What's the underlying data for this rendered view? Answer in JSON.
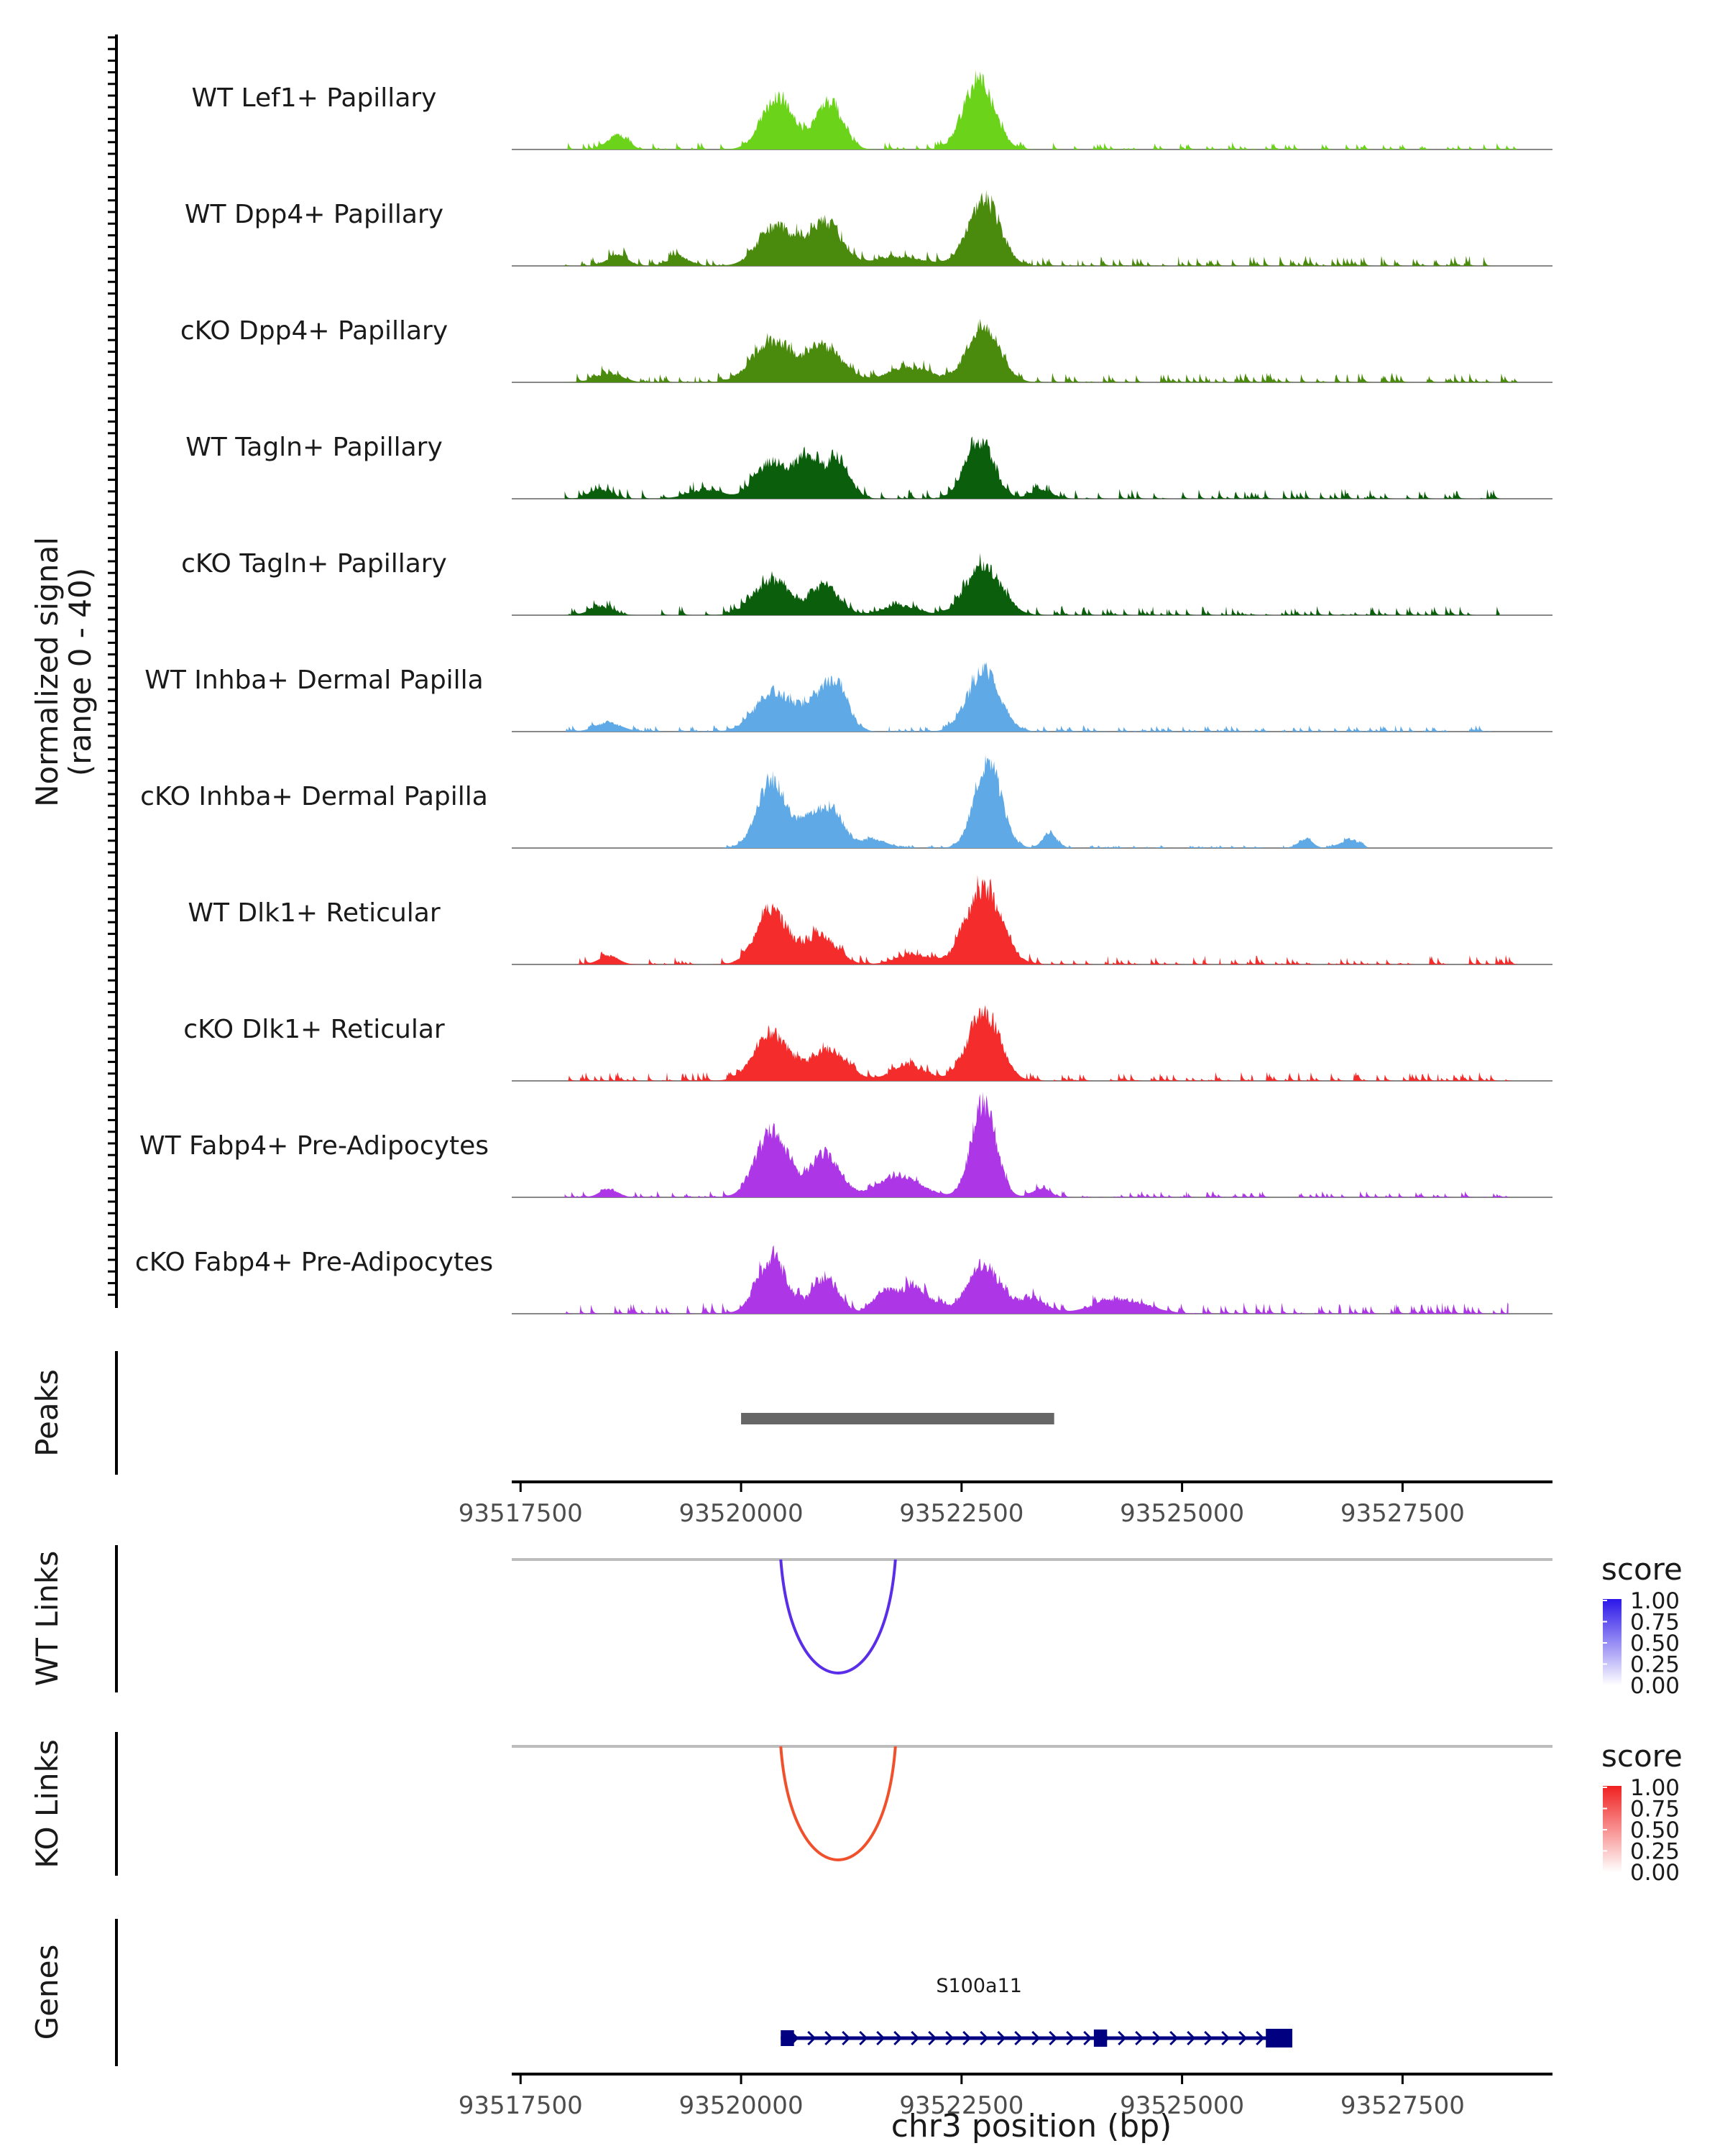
{
  "chart_data": {
    "type": "area",
    "region": {
      "chrom": "chr3",
      "start": 93517400,
      "end": 93529200
    },
    "xlabel": "chr3 position (bp)",
    "xticks": [
      93517500,
      93520000,
      93522500,
      93525000,
      93527500
    ],
    "xtick_labels": [
      "93517500",
      "93520000",
      "93522500",
      "93525000",
      "93527500"
    ],
    "signal_ylabel_line1": "Normalized signal",
    "signal_ylabel_line2": "(range 0 - 40)",
    "signal_range": [
      0,
      40
    ],
    "tracks": [
      {
        "name": "WT Lef1+ Papillary",
        "color": "#6bd31a",
        "seed": 1,
        "peaks": [
          [
            93518600,
            5,
            110
          ],
          [
            93520420,
            18,
            180
          ],
          [
            93521000,
            16,
            150
          ],
          [
            93522700,
            24,
            170
          ]
        ],
        "noise": 1.2,
        "extent": [
          93518000,
          93528800
        ]
      },
      {
        "name": "WT Dpp4+ Papillary",
        "color": "#4a8a0c",
        "seed": 2,
        "peaks": [
          [
            93518600,
            4,
            110
          ],
          [
            93519300,
            3,
            120
          ],
          [
            93520400,
            14,
            200
          ],
          [
            93520950,
            15,
            180
          ],
          [
            93521800,
            3,
            300
          ],
          [
            93522750,
            23,
            180
          ]
        ],
        "noise": 1.6,
        "extent": [
          93518000,
          93528500
        ]
      },
      {
        "name": "cKO Dpp4+ Papillary",
        "color": "#4a8a0c",
        "seed": 3,
        "peaks": [
          [
            93518500,
            3,
            150
          ],
          [
            93520350,
            14,
            220
          ],
          [
            93520950,
            12,
            200
          ],
          [
            93521900,
            5,
            250
          ],
          [
            93522750,
            20,
            180
          ]
        ],
        "noise": 1.5,
        "extent": [
          93518000,
          93528800
        ]
      },
      {
        "name": "WT Tagln+ Papillary",
        "color": "#0b5e0b",
        "seed": 4,
        "peaks": [
          [
            93518400,
            3,
            120
          ],
          [
            93519600,
            3,
            200
          ],
          [
            93520350,
            13,
            180
          ],
          [
            93520750,
            14,
            130
          ],
          [
            93521100,
            14,
            130
          ],
          [
            93522700,
            20,
            160
          ],
          [
            93523400,
            3,
            120
          ]
        ],
        "noise": 1.6,
        "extent": [
          93518000,
          93528600
        ]
      },
      {
        "name": "cKO Tagln+ Papillary",
        "color": "#0b5e0b",
        "seed": 5,
        "peaks": [
          [
            93518400,
            3,
            120
          ],
          [
            93520350,
            12,
            200
          ],
          [
            93520950,
            10,
            160
          ],
          [
            93521800,
            3,
            200
          ],
          [
            93522750,
            17,
            200
          ]
        ],
        "noise": 1.5,
        "extent": [
          93518000,
          93528600
        ]
      },
      {
        "name": "WT Inhba+ Dermal Papilla",
        "color": "#5fa9e6",
        "seed": 6,
        "peaks": [
          [
            93518500,
            3,
            150
          ],
          [
            93520350,
            13,
            200
          ],
          [
            93520900,
            12,
            200
          ],
          [
            93521100,
            9,
            120
          ],
          [
            93522750,
            21,
            180
          ]
        ],
        "noise": 1.0,
        "extent": [
          93518000,
          93528500
        ]
      },
      {
        "name": "cKO Inhba+ Dermal Papilla",
        "color": "#5fa9e6",
        "seed": 7,
        "peaks": [
          [
            93520350,
            24,
            160
          ],
          [
            93520800,
            10,
            150
          ],
          [
            93521050,
            11,
            130
          ],
          [
            93521500,
            3,
            150
          ],
          [
            93522800,
            30,
            150
          ],
          [
            93523500,
            5,
            80
          ],
          [
            93526400,
            3,
            80
          ],
          [
            93526900,
            3,
            100
          ]
        ],
        "noise": 0.5,
        "extent": [
          93519800,
          93527100
        ]
      },
      {
        "name": "WT Dlk1+ Reticular",
        "color": "#f52c2c",
        "seed": 8,
        "peaks": [
          [
            93518500,
            3,
            110
          ],
          [
            93520350,
            18,
            180
          ],
          [
            93520900,
            10,
            180
          ],
          [
            93521950,
            3,
            200
          ],
          [
            93522750,
            26,
            200
          ]
        ],
        "noise": 1.5,
        "extent": [
          93518000,
          93528800
        ]
      },
      {
        "name": "cKO Dlk1+ Reticular",
        "color": "#f52c2c",
        "seed": 9,
        "peaks": [
          [
            93520350,
            16,
            200
          ],
          [
            93521000,
            11,
            200
          ],
          [
            93521900,
            5,
            200
          ],
          [
            93522750,
            24,
            180
          ]
        ],
        "noise": 1.4,
        "extent": [
          93518000,
          93528800
        ]
      },
      {
        "name": "WT Fabp4+ Pre-Adipocytes",
        "color": "#ad37e6",
        "seed": 10,
        "peaks": [
          [
            93518500,
            3,
            100
          ],
          [
            93520350,
            23,
            180
          ],
          [
            93520950,
            15,
            170
          ],
          [
            93521800,
            7,
            250
          ],
          [
            93522750,
            33,
            140
          ],
          [
            93523400,
            3,
            100
          ]
        ],
        "noise": 1.0,
        "extent": [
          93518000,
          93528700
        ]
      },
      {
        "name": "cKO Fabp4+ Pre-Adipocytes",
        "color": "#ad37e6",
        "seed": 11,
        "peaks": [
          [
            93520350,
            19,
            170
          ],
          [
            93520950,
            12,
            150
          ],
          [
            93521600,
            6,
            120
          ],
          [
            93521950,
            9,
            200
          ],
          [
            93522750,
            17,
            180
          ],
          [
            93523300,
            5,
            160
          ],
          [
            93524300,
            5,
            300
          ]
        ],
        "noise": 1.8,
        "extent": [
          93518000,
          93528700
        ]
      }
    ],
    "peaks_label": "Peaks",
    "peak_regions": [
      [
        93520000,
        93523550
      ]
    ],
    "links": [
      {
        "label": "WT Links",
        "color": "#5a2ee8",
        "start": 93520450,
        "end": 93521750,
        "depth": 0.9,
        "score": 0.85,
        "legend_title": "score",
        "legend_stops": [
          "#ffffff",
          "#2b16e8"
        ]
      },
      {
        "label": "KO Links",
        "color": "#f0512c",
        "start": 93520450,
        "end": 93521750,
        "depth": 0.9,
        "score": 0.85,
        "legend_title": "score",
        "legend_stops": [
          "#ffffff",
          "#f02020"
        ]
      }
    ],
    "legend_ticks": [
      "1.00",
      "0.75",
      "0.50",
      "0.25",
      "0.00"
    ],
    "genes_label": "Genes",
    "gene": {
      "name": "S100a11",
      "start": 93520450,
      "end": 93526250,
      "color": "#000080",
      "exons": [
        [
          93520450,
          93520600
        ],
        [
          93524000,
          93524150
        ],
        [
          93525950,
          93526250
        ]
      ]
    }
  }
}
